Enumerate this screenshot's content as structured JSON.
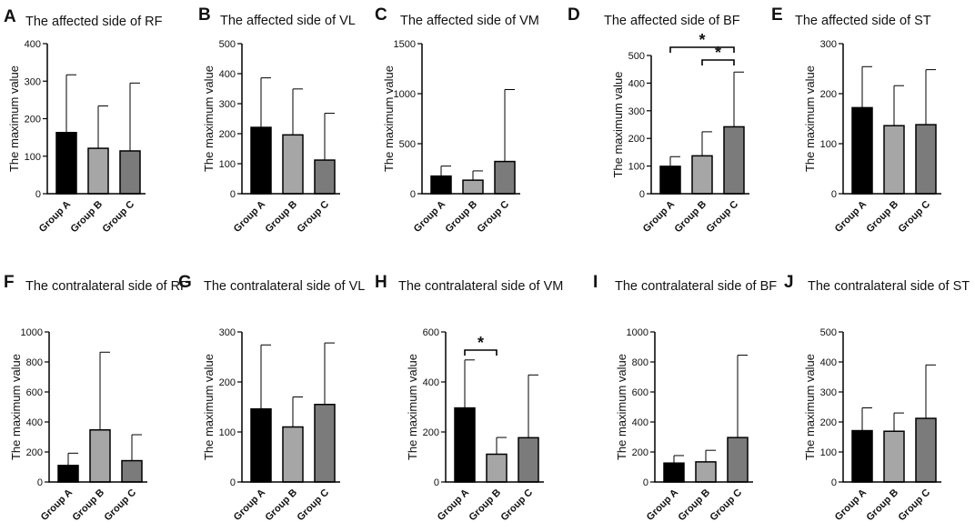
{
  "chart_data": [
    {
      "id": "A",
      "type": "bar",
      "title": "The affected side of RF",
      "ylabel": "The maximum  value",
      "categories": [
        "Group A",
        "Group B",
        "Group C"
      ],
      "values": [
        163,
        121,
        114
      ],
      "errors": [
        317,
        234,
        295
      ],
      "colors": [
        "#000000",
        "#a6a6a6",
        "#7b7b7b"
      ],
      "ylim": [
        0,
        400
      ],
      "yticks": [
        "0",
        "100",
        "200",
        "300",
        "400"
      ]
    },
    {
      "id": "B",
      "type": "bar",
      "title": "The affected side of VL",
      "ylabel": "The maximum  value",
      "categories": [
        "Group A",
        "Group B",
        "Group C"
      ],
      "values": [
        221,
        196,
        112
      ],
      "errors": [
        386,
        349,
        268
      ],
      "colors": [
        "#000000",
        "#a6a6a6",
        "#7b7b7b"
      ],
      "ylim": [
        0,
        500
      ],
      "yticks": [
        "0",
        "100",
        "200",
        "300",
        "400",
        "500"
      ]
    },
    {
      "id": "C",
      "type": "bar",
      "title": "The affected side of VM",
      "ylabel": "The maximum  value",
      "categories": [
        "Group A",
        "Group B",
        "Group C"
      ],
      "values": [
        176,
        135,
        322
      ],
      "errors": [
        276,
        228,
        1041
      ],
      "colors": [
        "#000000",
        "#a6a6a6",
        "#7b7b7b"
      ],
      "ylim": [
        0,
        1500
      ],
      "yticks": [
        "0",
        "500",
        "1000",
        "1500"
      ]
    },
    {
      "id": "D",
      "type": "bar",
      "title": "The affected side of BF",
      "ylabel": "The maximum  value",
      "categories": [
        "Group A",
        "Group B",
        "Group C"
      ],
      "values": [
        99,
        137,
        242
      ],
      "errors": [
        134,
        224,
        440
      ],
      "colors": [
        "#000000",
        "#a6a6a6",
        "#7b7b7b"
      ],
      "ylim": [
        0,
        500
      ],
      "yticks": [
        "0",
        "100",
        "200",
        "300",
        "400",
        "500"
      ],
      "significance": [
        {
          "from": 0,
          "to": 2,
          "label": "*"
        },
        {
          "from": 1,
          "to": 2,
          "label": "*"
        }
      ]
    },
    {
      "id": "E",
      "type": "bar",
      "title": "The affected side of ST",
      "ylabel": "The maximum  value",
      "categories": [
        "Group A",
        "Group B",
        "Group C"
      ],
      "values": [
        172,
        136,
        138
      ],
      "errors": [
        254,
        216,
        248
      ],
      "colors": [
        "#000000",
        "#a6a6a6",
        "#7b7b7b"
      ],
      "ylim": [
        0,
        300
      ],
      "yticks": [
        "0",
        "100",
        "200",
        "300"
      ]
    },
    {
      "id": "F",
      "type": "bar",
      "title": "The contralateral side of RF",
      "ylabel": "The maximum  value",
      "categories": [
        "Group A",
        "Group B",
        "Group C"
      ],
      "values": [
        110,
        347,
        142
      ],
      "errors": [
        192,
        865,
        315
      ],
      "colors": [
        "#000000",
        "#a6a6a6",
        "#7b7b7b"
      ],
      "ylim": [
        0,
        1000
      ],
      "yticks": [
        "0",
        "200",
        "400",
        "600",
        "800",
        "1000"
      ]
    },
    {
      "id": "G",
      "type": "bar",
      "title": "The contralateral side of VL",
      "ylabel": "The maximum  value",
      "categories": [
        "Group A",
        "Group B",
        "Group C"
      ],
      "values": [
        146,
        110,
        155
      ],
      "errors": [
        274,
        170,
        278
      ],
      "colors": [
        "#000000",
        "#a6a6a6",
        "#7b7b7b"
      ],
      "ylim": [
        0,
        300
      ],
      "yticks": [
        "0",
        "100",
        "200",
        "300"
      ]
    },
    {
      "id": "H",
      "type": "bar",
      "title": "The contralateral side of VM",
      "ylabel": "The maximum  value",
      "categories": [
        "Group A",
        "Group B",
        "Group C"
      ],
      "values": [
        296,
        111,
        177
      ],
      "errors": [
        488,
        178,
        428
      ],
      "colors": [
        "#000000",
        "#a6a6a6",
        "#7b7b7b"
      ],
      "ylim": [
        0,
        600
      ],
      "yticks": [
        "0",
        "200",
        "400",
        "600"
      ],
      "significance": [
        {
          "from": 0,
          "to": 1,
          "label": "*"
        }
      ]
    },
    {
      "id": "I",
      "type": "bar",
      "title": "The contralateral side of BF",
      "ylabel": "The maximum  value",
      "categories": [
        "Group A",
        "Group B",
        "Group C"
      ],
      "values": [
        126,
        134,
        296
      ],
      "errors": [
        176,
        211,
        845
      ],
      "colors": [
        "#000000",
        "#a6a6a6",
        "#7b7b7b"
      ],
      "ylim": [
        0,
        1000
      ],
      "yticks": [
        "0",
        "200",
        "400",
        "600",
        "800",
        "1000"
      ]
    },
    {
      "id": "J",
      "type": "bar",
      "title": "The contralateral side of ST",
      "ylabel": "The maximum  value",
      "categories": [
        "Group A",
        "Group B",
        "Group C"
      ],
      "values": [
        171,
        169,
        212
      ],
      "errors": [
        247,
        230,
        390
      ],
      "colors": [
        "#000000",
        "#a6a6a6",
        "#7b7b7b"
      ],
      "ylim": [
        0,
        500
      ],
      "yticks": [
        "0",
        "100",
        "200",
        "300",
        "400",
        "500"
      ]
    }
  ]
}
